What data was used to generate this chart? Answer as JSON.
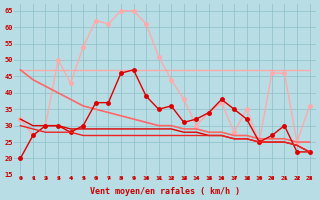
{
  "background_color": "#b8dde4",
  "grid_color": "#8fbfc8",
  "xlabel": "Vent moyen/en rafales ( km/h )",
  "x_ticks": [
    0,
    1,
    2,
    3,
    4,
    5,
    6,
    7,
    8,
    9,
    10,
    11,
    12,
    13,
    14,
    15,
    16,
    17,
    18,
    19,
    20,
    21,
    22,
    23
  ],
  "ylim": [
    15,
    67
  ],
  "yticks": [
    15,
    20,
    25,
    30,
    35,
    40,
    45,
    50,
    55,
    60,
    65
  ],
  "series": [
    {
      "color": "#ffaaaa",
      "linewidth": 1.0,
      "marker": null,
      "x": [
        0,
        1,
        2,
        3,
        4,
        5,
        6,
        7,
        8,
        9,
        10,
        11,
        12,
        13,
        14,
        15,
        16,
        17,
        18,
        19,
        20,
        21,
        22,
        23
      ],
      "y": [
        47,
        47,
        47,
        47,
        47,
        47,
        47,
        47,
        47,
        47,
        47,
        47,
        47,
        47,
        47,
        47,
        47,
        47,
        47,
        47,
        47,
        47,
        47,
        47
      ]
    },
    {
      "color": "#ffaaaa",
      "linewidth": 1.0,
      "marker": "o",
      "markersize": 2.5,
      "x": [
        0,
        1,
        2,
        3,
        4,
        5,
        6,
        7,
        8,
        9,
        10,
        11,
        12,
        13,
        14,
        15,
        16,
        17,
        18,
        19,
        20,
        21,
        22,
        23
      ],
      "y": [
        32,
        27,
        30,
        50,
        43,
        54,
        62,
        61,
        65,
        65,
        61,
        51,
        44,
        38,
        30,
        34,
        37,
        28,
        35,
        25,
        46,
        46,
        25,
        36
      ]
    },
    {
      "color": "#ff6666",
      "linewidth": 1.2,
      "marker": null,
      "x": [
        0,
        1,
        2,
        3,
        4,
        5,
        6,
        7,
        8,
        9,
        10,
        11,
        12,
        13,
        14,
        15,
        16,
        17,
        18,
        19,
        20,
        21,
        22,
        23
      ],
      "y": [
        47,
        44,
        42,
        40,
        38,
        36,
        35,
        34,
        33,
        32,
        31,
        30,
        30,
        29,
        29,
        28,
        28,
        27,
        27,
        26,
        26,
        26,
        25,
        25
      ]
    },
    {
      "color": "#dd0000",
      "linewidth": 1.0,
      "marker": "o",
      "markersize": 2.5,
      "x": [
        0,
        1,
        2,
        3,
        4,
        5,
        6,
        7,
        8,
        9,
        10,
        11,
        12,
        13,
        14,
        15,
        16,
        17,
        18,
        19,
        20,
        21,
        22,
        23
      ],
      "y": [
        20,
        27,
        30,
        30,
        28,
        30,
        37,
        37,
        46,
        47,
        39,
        35,
        36,
        31,
        32,
        34,
        38,
        35,
        32,
        25,
        27,
        30,
        22,
        22
      ]
    },
    {
      "color": "#dd0000",
      "linewidth": 1.0,
      "marker": null,
      "x": [
        0,
        1,
        2,
        3,
        4,
        5,
        6,
        7,
        8,
        9,
        10,
        11,
        12,
        13,
        14,
        15,
        16,
        17,
        18,
        19,
        20,
        21,
        22,
        23
      ],
      "y": [
        32,
        30,
        30,
        30,
        29,
        29,
        29,
        29,
        29,
        29,
        29,
        29,
        29,
        28,
        28,
        27,
        27,
        26,
        26,
        25,
        25,
        25,
        24,
        22
      ]
    },
    {
      "color": "#ee2222",
      "linewidth": 1.0,
      "marker": null,
      "x": [
        0,
        1,
        2,
        3,
        4,
        5,
        6,
        7,
        8,
        9,
        10,
        11,
        12,
        13,
        14,
        15,
        16,
        17,
        18,
        19,
        20,
        21,
        22,
        23
      ],
      "y": [
        30,
        29,
        28,
        28,
        28,
        27,
        27,
        27,
        27,
        27,
        27,
        27,
        27,
        27,
        27,
        27,
        27,
        26,
        26,
        25,
        25,
        25,
        24,
        22
      ]
    }
  ]
}
